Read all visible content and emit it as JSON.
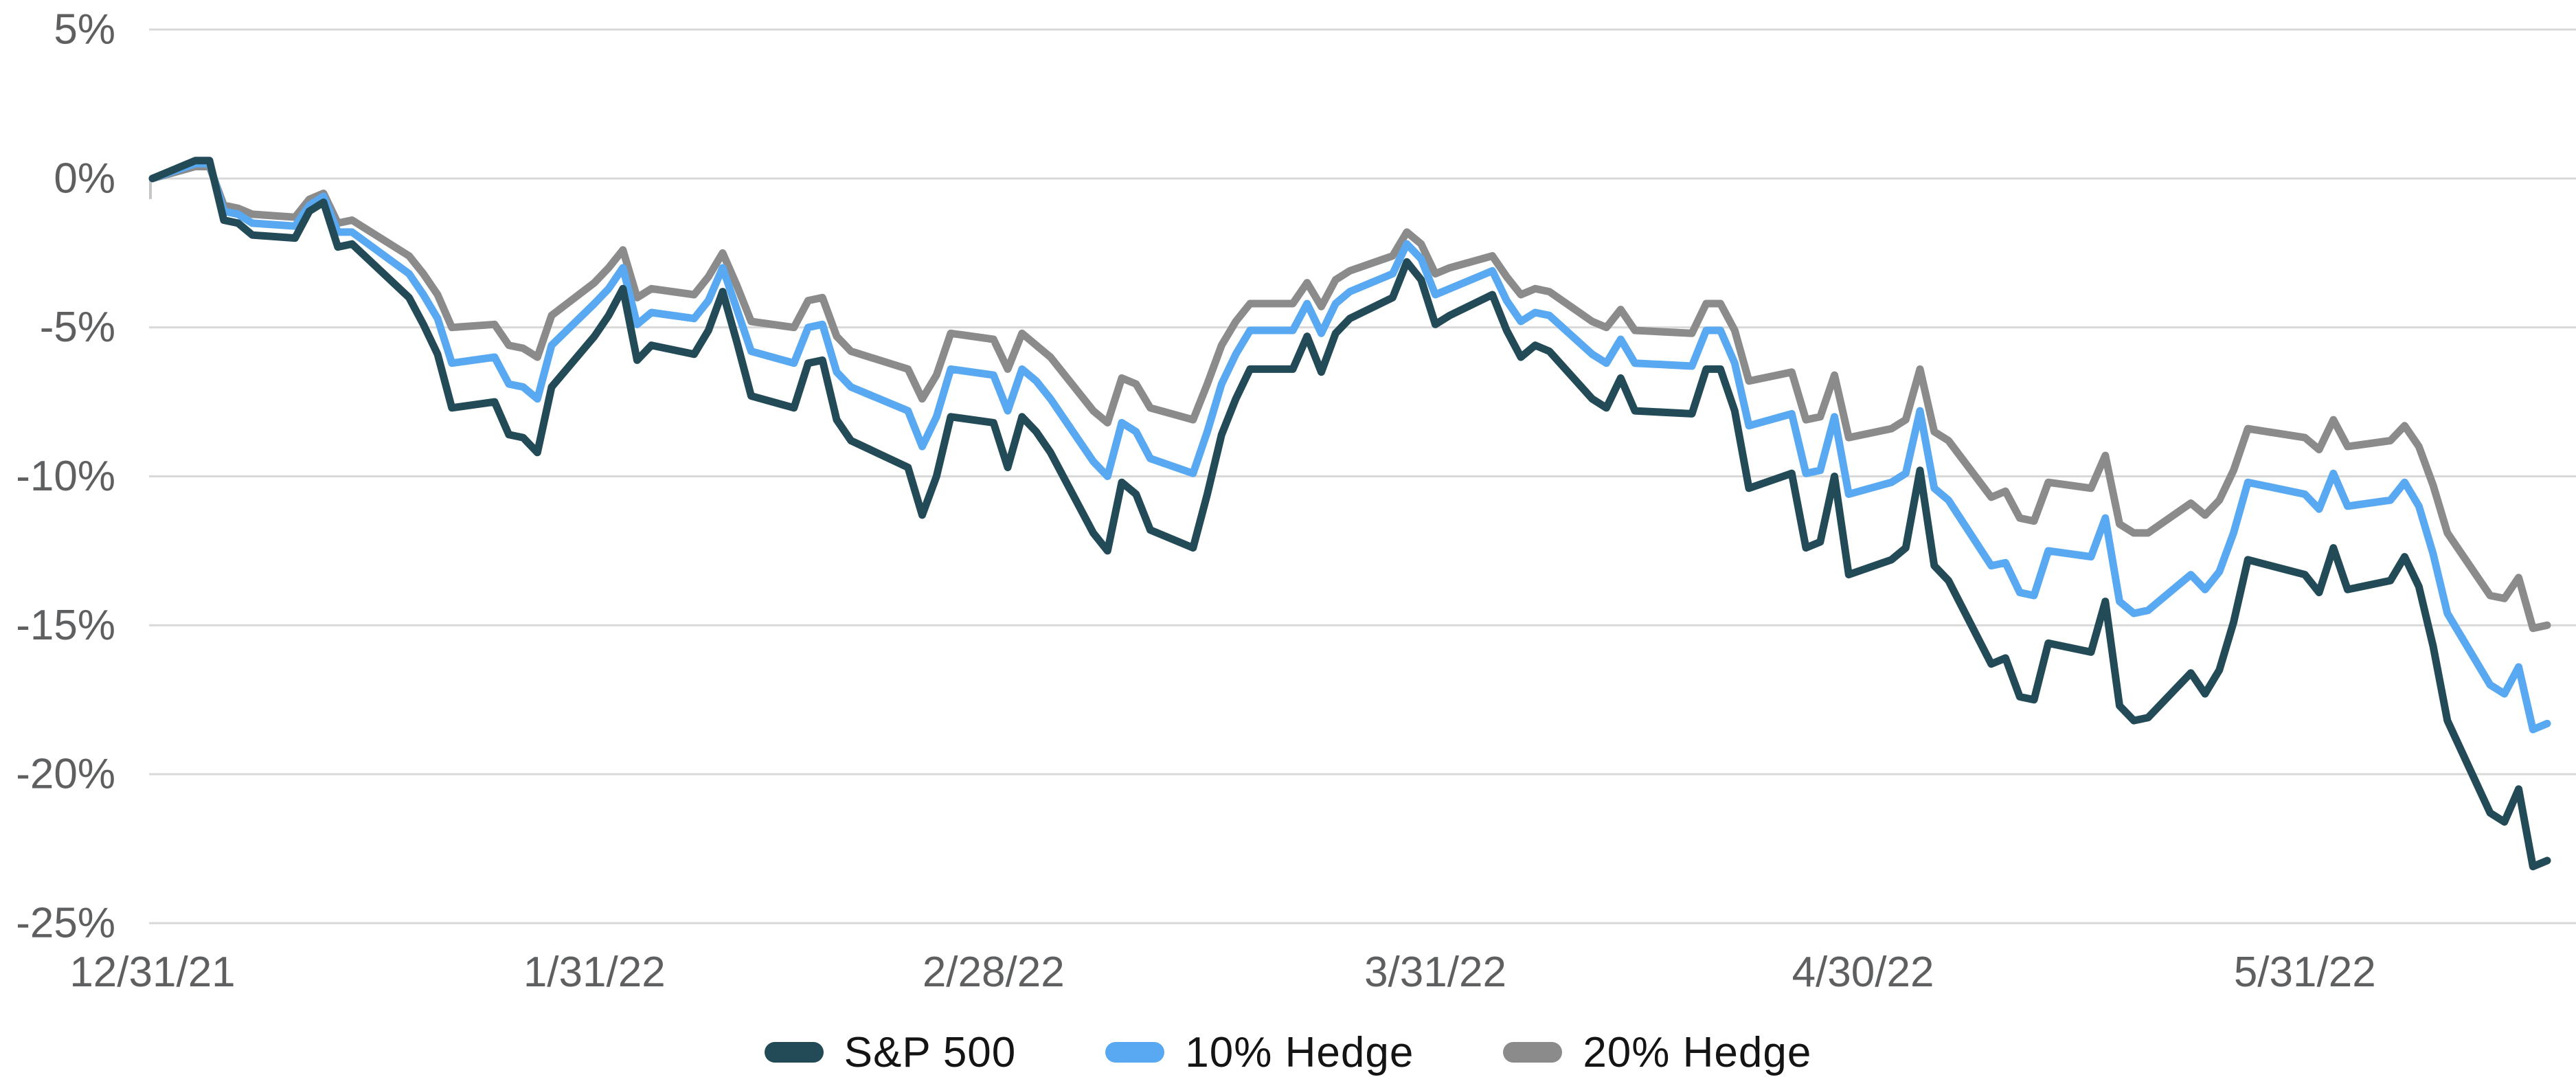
{
  "chart_data": {
    "type": "line",
    "x_axis": {
      "ticks": [
        {
          "label": "12/31/21",
          "date": "2021-12-31"
        },
        {
          "label": "1/31/22",
          "date": "2022-01-31"
        },
        {
          "label": "2/28/22",
          "date": "2022-02-28"
        },
        {
          "label": "3/31/22",
          "date": "2022-03-31"
        },
        {
          "label": "4/30/22",
          "date": "2022-04-30"
        },
        {
          "label": "5/31/22",
          "date": "2022-05-31"
        }
      ]
    },
    "y_axis": {
      "unit": "%",
      "range": [
        -25,
        5
      ],
      "ticks": [
        {
          "label": "5%",
          "value": 5
        },
        {
          "label": "0%",
          "value": 0
        },
        {
          "label": "-5%",
          "value": -5
        },
        {
          "label": "-10%",
          "value": -10
        },
        {
          "label": "-15%",
          "value": -15
        },
        {
          "label": "-20%",
          "value": -20
        },
        {
          "label": "-25%",
          "value": -25
        }
      ]
    },
    "legend_position": "bottom",
    "grid": "horizontal-only",
    "dates": [
      "2021-12-31",
      "2022-01-03",
      "2022-01-04",
      "2022-01-05",
      "2022-01-06",
      "2022-01-07",
      "2022-01-10",
      "2022-01-11",
      "2022-01-12",
      "2022-01-13",
      "2022-01-14",
      "2022-01-18",
      "2022-01-19",
      "2022-01-20",
      "2022-01-21",
      "2022-01-24",
      "2022-01-25",
      "2022-01-26",
      "2022-01-27",
      "2022-01-28",
      "2022-01-31",
      "2022-02-01",
      "2022-02-02",
      "2022-02-03",
      "2022-02-04",
      "2022-02-07",
      "2022-02-08",
      "2022-02-09",
      "2022-02-10",
      "2022-02-11",
      "2022-02-14",
      "2022-02-15",
      "2022-02-16",
      "2022-02-17",
      "2022-02-18",
      "2022-02-22",
      "2022-02-23",
      "2022-02-24",
      "2022-02-25",
      "2022-02-28",
      "2022-03-01",
      "2022-03-02",
      "2022-03-03",
      "2022-03-04",
      "2022-03-07",
      "2022-03-08",
      "2022-03-09",
      "2022-03-10",
      "2022-03-11",
      "2022-03-14",
      "2022-03-15",
      "2022-03-16",
      "2022-03-17",
      "2022-03-18",
      "2022-03-21",
      "2022-03-22",
      "2022-03-23",
      "2022-03-24",
      "2022-03-25",
      "2022-03-28",
      "2022-03-29",
      "2022-03-30",
      "2022-03-31",
      "2022-04-01",
      "2022-04-04",
      "2022-04-05",
      "2022-04-06",
      "2022-04-07",
      "2022-04-08",
      "2022-04-11",
      "2022-04-12",
      "2022-04-13",
      "2022-04-14",
      "2022-04-18",
      "2022-04-19",
      "2022-04-20",
      "2022-04-21",
      "2022-04-22",
      "2022-04-25",
      "2022-04-26",
      "2022-04-27",
      "2022-04-28",
      "2022-04-29",
      "2022-05-02",
      "2022-05-03",
      "2022-05-04",
      "2022-05-05",
      "2022-05-06",
      "2022-05-09",
      "2022-05-10",
      "2022-05-11",
      "2022-05-12",
      "2022-05-13",
      "2022-05-16",
      "2022-05-17",
      "2022-05-18",
      "2022-05-19",
      "2022-05-20",
      "2022-05-23",
      "2022-05-24",
      "2022-05-25",
      "2022-05-26",
      "2022-05-27",
      "2022-05-31",
      "2022-06-01",
      "2022-06-02",
      "2022-06-03",
      "2022-06-06",
      "2022-06-07",
      "2022-06-08",
      "2022-06-09",
      "2022-06-10",
      "2022-06-13",
      "2022-06-14",
      "2022-06-15",
      "2022-06-16",
      "2022-06-17"
    ],
    "series": [
      {
        "name": "S&P 500",
        "color": "#224B57",
        "values": [
          0.0,
          0.6,
          0.6,
          -1.4,
          -1.5,
          -1.9,
          -2.0,
          -1.1,
          -0.8,
          -2.3,
          -2.2,
          -4.0,
          -4.9,
          -5.9,
          -7.7,
          -7.5,
          -8.6,
          -8.7,
          -9.2,
          -7.0,
          -5.3,
          -4.6,
          -3.7,
          -6.1,
          -5.6,
          -5.9,
          -5.1,
          -3.8,
          -5.5,
          -7.3,
          -7.7,
          -6.2,
          -6.1,
          -8.1,
          -8.8,
          -9.7,
          -11.3,
          -10.0,
          -8.0,
          -8.2,
          -9.7,
          -8.0,
          -8.5,
          -9.2,
          -11.9,
          -12.5,
          -10.2,
          -10.6,
          -11.8,
          -12.4,
          -10.6,
          -8.6,
          -7.4,
          -6.4,
          -6.4,
          -5.3,
          -6.5,
          -5.2,
          -4.7,
          -4.0,
          -2.8,
          -3.4,
          -4.9,
          -4.6,
          -3.9,
          -5.1,
          -6.0,
          -5.6,
          -5.8,
          -7.4,
          -7.7,
          -6.7,
          -7.8,
          -7.9,
          -6.4,
          -6.4,
          -7.8,
          -10.4,
          -9.9,
          -12.4,
          -12.2,
          -10.0,
          -13.3,
          -12.8,
          -12.4,
          -9.8,
          -13.0,
          -13.5,
          -16.3,
          -16.1,
          -17.4,
          -17.5,
          -15.6,
          -15.9,
          -14.2,
          -17.7,
          -18.2,
          -18.1,
          -16.6,
          -17.3,
          -16.5,
          -14.9,
          -12.8,
          -13.3,
          -13.9,
          -12.4,
          -13.8,
          -13.5,
          -12.7,
          -13.7,
          -15.7,
          -18.2,
          -21.3,
          -21.6,
          -20.5,
          -23.1,
          -22.9
        ]
      },
      {
        "name": "10% Hedge",
        "color": "#58A9F1",
        "values": [
          0.0,
          0.5,
          0.5,
          -1.1,
          -1.2,
          -1.5,
          -1.6,
          -0.9,
          -0.6,
          -1.8,
          -1.8,
          -3.2,
          -3.9,
          -4.7,
          -6.2,
          -6.0,
          -6.9,
          -7.0,
          -7.4,
          -5.6,
          -4.2,
          -3.7,
          -3.0,
          -4.9,
          -4.5,
          -4.7,
          -4.1,
          -3.0,
          -4.4,
          -5.8,
          -6.2,
          -5.0,
          -4.9,
          -6.5,
          -7.0,
          -7.8,
          -9.0,
          -8.0,
          -6.4,
          -6.6,
          -7.8,
          -6.4,
          -6.8,
          -7.4,
          -9.5,
          -10.0,
          -8.2,
          -8.5,
          -9.4,
          -9.9,
          -8.5,
          -6.9,
          -5.9,
          -5.1,
          -5.1,
          -4.2,
          -5.2,
          -4.2,
          -3.8,
          -3.2,
          -2.2,
          -2.7,
          -3.9,
          -3.7,
          -3.1,
          -4.1,
          -4.8,
          -4.5,
          -4.6,
          -5.9,
          -6.2,
          -5.4,
          -6.2,
          -6.3,
          -5.1,
          -5.1,
          -6.2,
          -8.3,
          -7.9,
          -9.9,
          -9.8,
          -8.0,
          -10.6,
          -10.2,
          -9.9,
          -7.8,
          -10.4,
          -10.8,
          -13.0,
          -12.9,
          -13.9,
          -14.0,
          -12.5,
          -12.7,
          -11.4,
          -14.2,
          -14.6,
          -14.5,
          -13.3,
          -13.8,
          -13.2,
          -11.9,
          -10.2,
          -10.6,
          -11.1,
          -9.9,
          -11.0,
          -10.8,
          -10.2,
          -11.0,
          -12.6,
          -14.6,
          -17.0,
          -17.3,
          -16.4,
          -18.5,
          -18.3
        ]
      },
      {
        "name": "20% Hedge",
        "color": "#8B8B8B",
        "values": [
          0.0,
          0.4,
          0.4,
          -0.9,
          -1.0,
          -1.2,
          -1.3,
          -0.7,
          -0.5,
          -1.5,
          -1.4,
          -2.6,
          -3.2,
          -3.9,
          -5.0,
          -4.9,
          -5.6,
          -5.7,
          -6.0,
          -4.6,
          -3.5,
          -3.0,
          -2.4,
          -4.0,
          -3.7,
          -3.9,
          -3.3,
          -2.5,
          -3.6,
          -4.8,
          -5.0,
          -4.1,
          -4.0,
          -5.3,
          -5.8,
          -6.4,
          -7.4,
          -6.6,
          -5.2,
          -5.4,
          -6.4,
          -5.2,
          -5.6,
          -6.0,
          -7.8,
          -8.2,
          -6.7,
          -6.9,
          -7.7,
          -8.1,
          -6.9,
          -5.6,
          -4.8,
          -4.2,
          -4.2,
          -3.5,
          -4.3,
          -3.4,
          -3.1,
          -2.6,
          -1.8,
          -2.2,
          -3.2,
          -3.0,
          -2.6,
          -3.3,
          -3.9,
          -3.7,
          -3.8,
          -4.8,
          -5.0,
          -4.4,
          -5.1,
          -5.2,
          -4.2,
          -4.2,
          -5.1,
          -6.8,
          -6.5,
          -8.1,
          -8.0,
          -6.6,
          -8.7,
          -8.4,
          -8.1,
          -6.4,
          -8.5,
          -8.8,
          -10.7,
          -10.5,
          -11.4,
          -11.5,
          -10.2,
          -10.4,
          -9.3,
          -11.6,
          -11.9,
          -11.9,
          -10.9,
          -11.3,
          -10.8,
          -9.8,
          -8.4,
          -8.7,
          -9.1,
          -8.1,
          -9.0,
          -8.8,
          -8.3,
          -9.0,
          -10.3,
          -11.9,
          -14.0,
          -14.1,
          -13.4,
          -15.1,
          -15.0
        ]
      }
    ]
  },
  "styles": {
    "background": "#FFFFFF",
    "grid_color": "#D9D9D9",
    "axis_stub_color": "#C4C6C7",
    "axis_label_color": "#5E5F61",
    "legend_text_color": "#141414"
  }
}
